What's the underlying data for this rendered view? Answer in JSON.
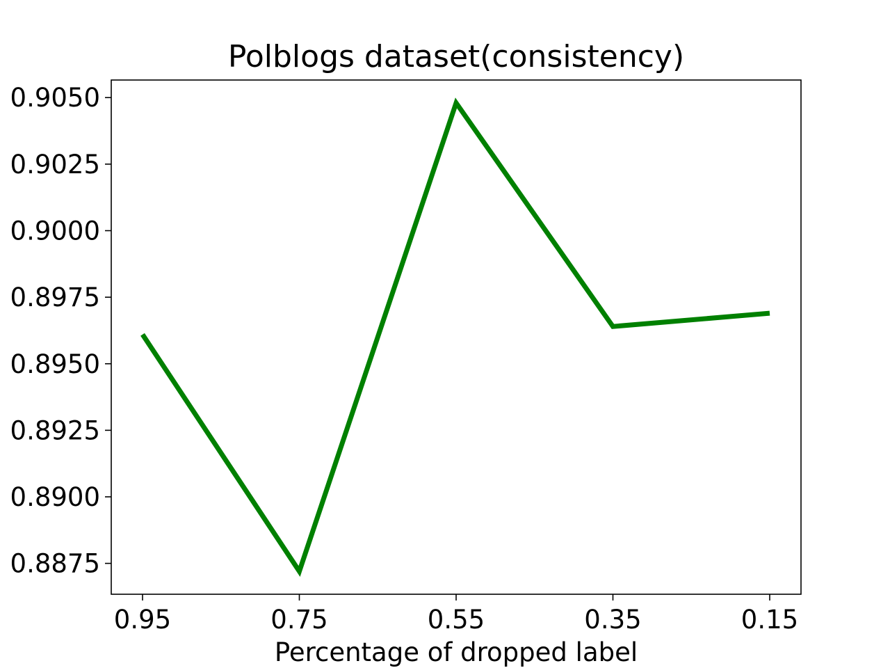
{
  "chart_data": {
    "type": "line",
    "title": "Polblogs dataset(consistency)",
    "xlabel": "Percentage of dropped label",
    "ylabel": "",
    "categories": [
      "0.95",
      "0.75",
      "0.55",
      "0.35",
      "0.15"
    ],
    "series": [
      {
        "values": [
          0.8961,
          0.8872,
          0.9048,
          0.8964,
          0.8969
        ],
        "color": "#008000"
      }
    ],
    "ylim": [
      0.88634,
      0.90566
    ],
    "yticks": [
      0.8875,
      0.89,
      0.8925,
      0.895,
      0.8975,
      0.9,
      0.9025,
      0.905
    ],
    "ytick_labels": [
      "0.8875",
      "0.8900",
      "0.8925",
      "0.8950",
      "0.8975",
      "0.9000",
      "0.9025",
      "0.9050"
    ],
    "grid": false,
    "legend": "none"
  }
}
